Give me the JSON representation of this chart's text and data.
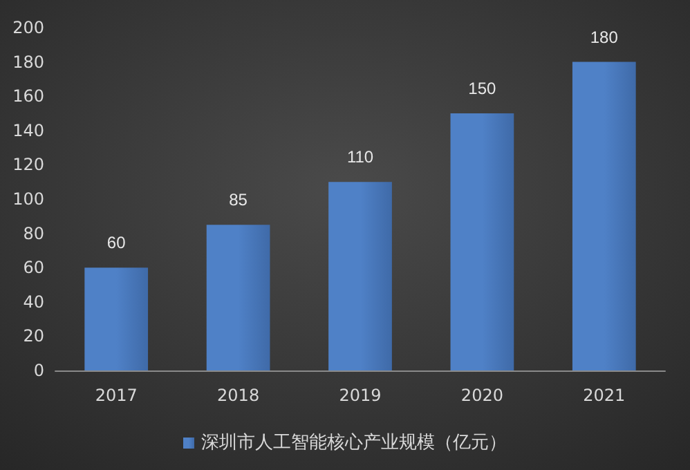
{
  "chart_data": {
    "type": "bar",
    "categories": [
      "2017",
      "2018",
      "2019",
      "2020",
      "2021"
    ],
    "series": [
      {
        "name": "深圳市人工智能核心产业规模（亿元）",
        "color": "#4f81c7",
        "values": [
          60,
          85,
          110,
          150,
          180
        ]
      }
    ],
    "ylim": [
      0,
      200
    ],
    "yticks": [
      0,
      20,
      40,
      60,
      80,
      100,
      120,
      140,
      160,
      180,
      200
    ],
    "grid": false,
    "legend": "bottom",
    "data_labels": true
  }
}
